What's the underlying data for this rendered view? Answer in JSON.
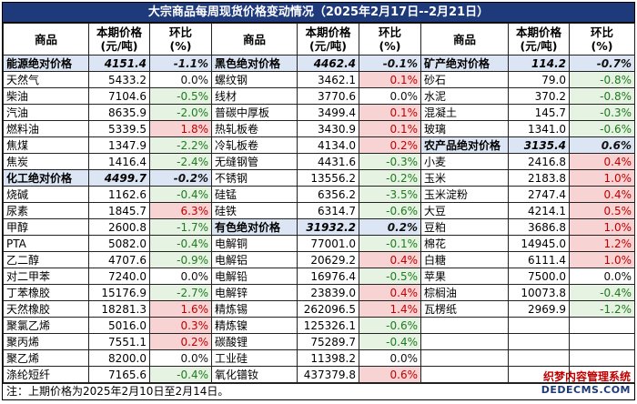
{
  "title": "大宗商品每周现货价格变动情况（2025年2月17日--2月21日）",
  "headers": {
    "commodity": "商品",
    "price_l1": "本期价格",
    "price_l2": "(元/吨)",
    "change_l1": "环比",
    "change_l2": "(%)"
  },
  "rows": [
    [
      {
        "n": "能源绝对价格",
        "p": "4151.4",
        "c": "-1.1%",
        "s": true
      },
      {
        "n": "黑色绝对价格",
        "p": "4462.4",
        "c": "-0.1%",
        "s": true
      },
      {
        "n": "矿产绝对价格",
        "p": "114.2",
        "c": "-0.7%",
        "s": true
      }
    ],
    [
      {
        "n": "天然气",
        "p": "5433.2",
        "c": "0.0%"
      },
      {
        "n": "螺纹钢",
        "p": "3462.1",
        "c": "0.1%"
      },
      {
        "n": "砂石",
        "p": "79.0",
        "c": "-0.8%"
      }
    ],
    [
      {
        "n": "柴油",
        "p": "7104.6",
        "c": "-0.5%"
      },
      {
        "n": "线材",
        "p": "3770.6",
        "c": "0.0%"
      },
      {
        "n": "水泥",
        "p": "370.2",
        "c": "-0.8%"
      }
    ],
    [
      {
        "n": "汽油",
        "p": "8635.9",
        "c": "-2.0%"
      },
      {
        "n": "普碳中厚板",
        "p": "3499.4",
        "c": "0.1%"
      },
      {
        "n": "混凝土",
        "p": "145.7",
        "c": "-0.3%"
      }
    ],
    [
      {
        "n": "燃料油",
        "p": "5339.5",
        "c": "1.8%"
      },
      {
        "n": "热轧板卷",
        "p": "3430.9",
        "c": "0.1%"
      },
      {
        "n": "玻璃",
        "p": "1341.0",
        "c": "-0.6%"
      }
    ],
    [
      {
        "n": "焦煤",
        "p": "1347.9",
        "c": "-2.2%"
      },
      {
        "n": "冷轧板卷",
        "p": "4134.0",
        "c": "0.2%"
      },
      {
        "n": "农产品绝对价格",
        "p": "3135.4",
        "c": "0.6%",
        "s": true
      }
    ],
    [
      {
        "n": "焦炭",
        "p": "1416.4",
        "c": "-2.4%"
      },
      {
        "n": "无缝钢管",
        "p": "4431.6",
        "c": "-0.3%"
      },
      {
        "n": "小麦",
        "p": "2416.8",
        "c": "0.4%"
      }
    ],
    [
      {
        "n": "化工绝对价格",
        "p": "4499.7",
        "c": "-0.2%",
        "s": true
      },
      {
        "n": "不锈钢",
        "p": "13556.2",
        "c": "-0.2%"
      },
      {
        "n": "玉米",
        "p": "2183.8",
        "c": "1.0%"
      }
    ],
    [
      {
        "n": "烧碱",
        "p": "1162.6",
        "c": "-0.4%"
      },
      {
        "n": "硅锰",
        "p": "6356.2",
        "c": "-3.5%"
      },
      {
        "n": "玉米淀粉",
        "p": "2747.4",
        "c": "0.4%"
      }
    ],
    [
      {
        "n": "尿素",
        "p": "1845.7",
        "c": "6.3%"
      },
      {
        "n": "硅铁",
        "p": "6314.7",
        "c": "-0.6%"
      },
      {
        "n": "大豆",
        "p": "4214.1",
        "c": "0.5%"
      }
    ],
    [
      {
        "n": "甲醇",
        "p": "2600.8",
        "c": "-1.7%"
      },
      {
        "n": "有色绝对价格",
        "p": "31932.2",
        "c": "0.2%",
        "s": true
      },
      {
        "n": "豆粕",
        "p": "3686.8",
        "c": "1.0%"
      }
    ],
    [
      {
        "n": "PTA",
        "p": "5082.0",
        "c": "-0.4%"
      },
      {
        "n": "电解铜",
        "p": "77001.0",
        "c": "-0.1%"
      },
      {
        "n": "棉花",
        "p": "14945.0",
        "c": "1.2%"
      }
    ],
    [
      {
        "n": "乙二醇",
        "p": "4707.6",
        "c": "-0.9%"
      },
      {
        "n": "电解铝",
        "p": "20629.2",
        "c": "0.4%"
      },
      {
        "n": "白糖",
        "p": "6111.4",
        "c": "1.0%"
      }
    ],
    [
      {
        "n": "对二甲苯",
        "p": "7240.0",
        "c": "0.0%"
      },
      {
        "n": "电解铅",
        "p": "16976.4",
        "c": "-0.5%"
      },
      {
        "n": "苹果",
        "p": "7500.0",
        "c": "0.0%"
      }
    ],
    [
      {
        "n": "丁苯橡胶",
        "p": "15176.9",
        "c": "-2.7%"
      },
      {
        "n": "电解锌",
        "p": "23839.0",
        "c": "0.4%"
      },
      {
        "n": "棕榈油",
        "p": "10073.8",
        "c": "-0.4%"
      }
    ],
    [
      {
        "n": "天然橡胶",
        "p": "18281.3",
        "c": "1.6%"
      },
      {
        "n": "精炼锡",
        "p": "262096.5",
        "c": "1.4%"
      },
      {
        "n": "瓦楞纸",
        "p": "2969.9",
        "c": "-1.2%"
      }
    ],
    [
      {
        "n": "聚氯乙烯",
        "p": "5016.0",
        "c": "0.3%"
      },
      {
        "n": "精炼镍",
        "p": "125326.1",
        "c": "-0.6%"
      },
      null
    ],
    [
      {
        "n": "聚丙烯",
        "p": "7551.1",
        "c": "0.2%"
      },
      {
        "n": "碳酸锂",
        "p": "75289.7",
        "c": "-0.4%"
      },
      null
    ],
    [
      {
        "n": "聚乙烯",
        "p": "8200.0",
        "c": "0.0%"
      },
      {
        "n": "工业硅",
        "p": "11398.2",
        "c": "0.0%"
      },
      null
    ],
    [
      {
        "n": "涤纶短纤",
        "p": "7165.6",
        "c": "-0.4%"
      },
      {
        "n": "氧化镨钕",
        "p": "437379.8",
        "c": "0.6%"
      },
      null
    ]
  ],
  "note": "注：上期价格为2025年2月10日至2月14日。",
  "watermark": {
    "line1": "织梦内容管理系统",
    "line2": "DEDECMS.COM"
  },
  "colors": {
    "title_bg": "#1f3a7a",
    "section_bg": "#dbe5f3",
    "up": "#c00000",
    "up_bg": "#f8d3d3",
    "down": "#1e7b1e",
    "down_bg": "#e6f2e2"
  }
}
